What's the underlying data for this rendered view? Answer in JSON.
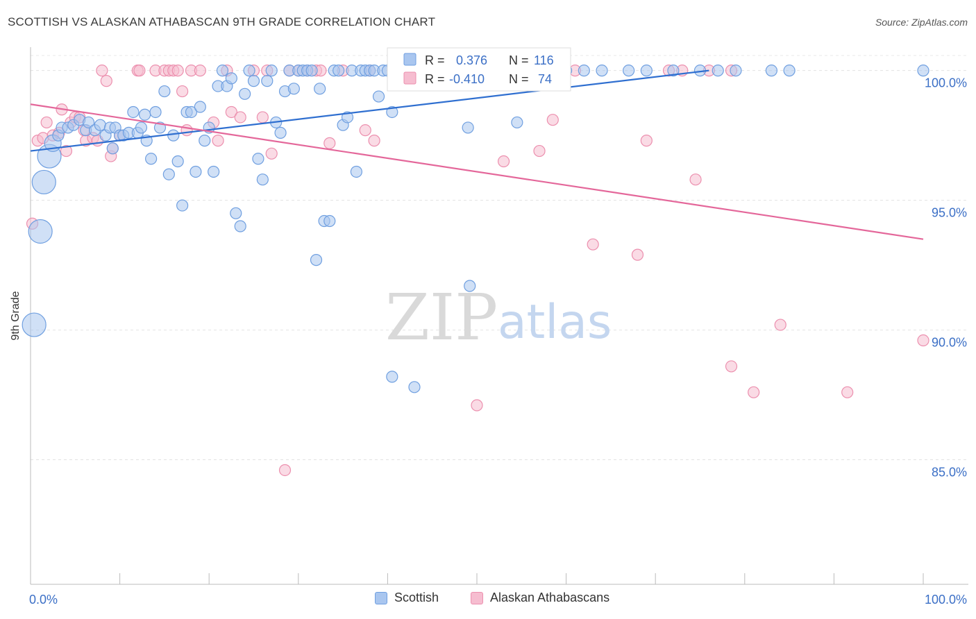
{
  "header": {
    "title": "SCOTTISH VS ALASKAN ATHABASCAN 9TH GRADE CORRELATION CHART",
    "source": "Source: ZipAtlas.com"
  },
  "watermark": {
    "zip": "ZIP",
    "atlas": "atlas"
  },
  "colors": {
    "blue_fill": "#a9c6ef",
    "blue_stroke": "#6f9fe0",
    "blue_line": "#2f6fd0",
    "pink_fill": "#f6bdd0",
    "pink_stroke": "#ec8fae",
    "pink_line": "#e4679a",
    "axis_label_blue": "#3b6fc6"
  },
  "legend_box": {
    "rows": [
      {
        "r_label": "R =",
        "r_value": "0.376",
        "n_label": "N =",
        "n_value": "116"
      },
      {
        "r_label": "R =",
        "r_value": "-0.410",
        "n_label": "N =",
        "n_value": "74"
      }
    ]
  },
  "bottom_legend": {
    "items": [
      "Scottish",
      "Alaskan Athabascans"
    ]
  },
  "chart_data": {
    "type": "scatter",
    "title": "SCOTTISH VS ALASKAN ATHABASCAN 9TH GRADE CORRELATION CHART",
    "ylabel": "9th Grade",
    "xlabel": "",
    "x_ticks": [
      "0.0%",
      "100.0%"
    ],
    "y_ticks": [
      "100.0%",
      "95.0%",
      "90.0%",
      "85.0%"
    ],
    "xlim": [
      0,
      100
    ],
    "ylim": [
      80.2,
      100.9
    ],
    "grid": "horizontal dashed",
    "legend_placement": "top-center",
    "series": [
      {
        "name": "Scottish",
        "R": 0.376,
        "N": 116,
        "trend": {
          "x": [
            0,
            76
          ],
          "y": [
            96.9,
            100.0
          ]
        },
        "points": [
          {
            "x": 0.4,
            "y": 90.2,
            "s": 3
          },
          {
            "x": 1.1,
            "y": 93.8,
            "s": 3
          },
          {
            "x": 1.5,
            "y": 95.7,
            "s": 3
          },
          {
            "x": 2.1,
            "y": 96.7,
            "s": 3
          },
          {
            "x": 2.5,
            "y": 97.2,
            "s": 2
          },
          {
            "x": 3.1,
            "y": 97.5,
            "s": 1
          },
          {
            "x": 3.5,
            "y": 97.8,
            "s": 1
          },
          {
            "x": 4.2,
            "y": 97.8,
            "s": 1
          },
          {
            "x": 4.8,
            "y": 97.9,
            "s": 1
          },
          {
            "x": 5.5,
            "y": 98.1,
            "s": 1
          },
          {
            "x": 6.2,
            "y": 97.7,
            "s": 1
          },
          {
            "x": 6.5,
            "y": 98.0,
            "s": 1
          },
          {
            "x": 7.2,
            "y": 97.7,
            "s": 1
          },
          {
            "x": 7.8,
            "y": 97.9,
            "s": 1
          },
          {
            "x": 8.4,
            "y": 97.5,
            "s": 1
          },
          {
            "x": 8.9,
            "y": 97.8,
            "s": 1
          },
          {
            "x": 9.2,
            "y": 97.0,
            "s": 1
          },
          {
            "x": 9.5,
            "y": 97.8,
            "s": 1
          },
          {
            "x": 10.0,
            "y": 97.5,
            "s": 1
          },
          {
            "x": 10.4,
            "y": 97.5,
            "s": 1
          },
          {
            "x": 11.0,
            "y": 97.6,
            "s": 1
          },
          {
            "x": 11.5,
            "y": 98.4,
            "s": 1
          },
          {
            "x": 12.0,
            "y": 97.6,
            "s": 1
          },
          {
            "x": 12.4,
            "y": 97.8,
            "s": 1
          },
          {
            "x": 12.8,
            "y": 98.3,
            "s": 1
          },
          {
            "x": 13.0,
            "y": 97.3,
            "s": 1
          },
          {
            "x": 13.5,
            "y": 96.6,
            "s": 1
          },
          {
            "x": 14.0,
            "y": 98.4,
            "s": 1
          },
          {
            "x": 14.5,
            "y": 97.8,
            "s": 1
          },
          {
            "x": 15.0,
            "y": 99.2,
            "s": 1
          },
          {
            "x": 15.5,
            "y": 96.0,
            "s": 1
          },
          {
            "x": 16.0,
            "y": 97.5,
            "s": 1
          },
          {
            "x": 16.5,
            "y": 96.5,
            "s": 1
          },
          {
            "x": 17.0,
            "y": 94.8,
            "s": 1
          },
          {
            "x": 17.5,
            "y": 98.4,
            "s": 1
          },
          {
            "x": 18.0,
            "y": 98.4,
            "s": 1
          },
          {
            "x": 18.5,
            "y": 96.1,
            "s": 1
          },
          {
            "x": 19.0,
            "y": 98.6,
            "s": 1
          },
          {
            "x": 19.5,
            "y": 97.3,
            "s": 1
          },
          {
            "x": 20.0,
            "y": 97.8,
            "s": 1
          },
          {
            "x": 20.5,
            "y": 96.1,
            "s": 1
          },
          {
            "x": 21.0,
            "y": 99.4,
            "s": 1
          },
          {
            "x": 21.5,
            "y": 100.0,
            "s": 1
          },
          {
            "x": 22.0,
            "y": 99.4,
            "s": 1
          },
          {
            "x": 22.5,
            "y": 99.7,
            "s": 1
          },
          {
            "x": 23.0,
            "y": 94.5,
            "s": 1
          },
          {
            "x": 23.5,
            "y": 94.0,
            "s": 1
          },
          {
            "x": 24.0,
            "y": 99.1,
            "s": 1
          },
          {
            "x": 24.5,
            "y": 100.0,
            "s": 1
          },
          {
            "x": 25.0,
            "y": 99.6,
            "s": 1
          },
          {
            "x": 25.5,
            "y": 96.6,
            "s": 1
          },
          {
            "x": 26.0,
            "y": 95.8,
            "s": 1
          },
          {
            "x": 26.5,
            "y": 99.6,
            "s": 1
          },
          {
            "x": 27.0,
            "y": 100.0,
            "s": 1
          },
          {
            "x": 27.5,
            "y": 98.0,
            "s": 1
          },
          {
            "x": 28.0,
            "y": 97.6,
            "s": 1
          },
          {
            "x": 28.5,
            "y": 99.2,
            "s": 1
          },
          {
            "x": 29.0,
            "y": 100.0,
            "s": 1
          },
          {
            "x": 29.5,
            "y": 99.3,
            "s": 1
          },
          {
            "x": 30.0,
            "y": 100.0,
            "s": 1
          },
          {
            "x": 30.5,
            "y": 100.0,
            "s": 1
          },
          {
            "x": 31.0,
            "y": 100.0,
            "s": 1
          },
          {
            "x": 31.5,
            "y": 100.0,
            "s": 1
          },
          {
            "x": 32.0,
            "y": 92.7,
            "s": 1
          },
          {
            "x": 32.4,
            "y": 99.3,
            "s": 1
          },
          {
            "x": 32.9,
            "y": 94.2,
            "s": 1
          },
          {
            "x": 33.5,
            "y": 94.2,
            "s": 1
          },
          {
            "x": 34.0,
            "y": 100.0,
            "s": 1
          },
          {
            "x": 34.5,
            "y": 100.0,
            "s": 1
          },
          {
            "x": 35.0,
            "y": 97.9,
            "s": 1
          },
          {
            "x": 35.5,
            "y": 98.2,
            "s": 1
          },
          {
            "x": 36.0,
            "y": 100.0,
            "s": 1
          },
          {
            "x": 36.5,
            "y": 96.1,
            "s": 1
          },
          {
            "x": 37.0,
            "y": 100.0,
            "s": 1
          },
          {
            "x": 37.5,
            "y": 100.0,
            "s": 1
          },
          {
            "x": 38.0,
            "y": 100.0,
            "s": 1
          },
          {
            "x": 38.5,
            "y": 100.0,
            "s": 1
          },
          {
            "x": 39.0,
            "y": 99.0,
            "s": 1
          },
          {
            "x": 39.5,
            "y": 100.0,
            "s": 1
          },
          {
            "x": 40.0,
            "y": 100.0,
            "s": 1
          },
          {
            "x": 40.5,
            "y": 88.2,
            "s": 1
          },
          {
            "x": 40.5,
            "y": 98.4,
            "s": 1
          },
          {
            "x": 42.0,
            "y": 100.0,
            "s": 1
          },
          {
            "x": 43.0,
            "y": 87.8,
            "s": 1
          },
          {
            "x": 44.0,
            "y": 100.0,
            "s": 1
          },
          {
            "x": 46.0,
            "y": 100.0,
            "s": 1
          },
          {
            "x": 48.0,
            "y": 100.0,
            "s": 1
          },
          {
            "x": 49.0,
            "y": 97.8,
            "s": 1
          },
          {
            "x": 49.2,
            "y": 91.7,
            "s": 1
          },
          {
            "x": 50.0,
            "y": 100.0,
            "s": 1
          },
          {
            "x": 54.0,
            "y": 100.0,
            "s": 1
          },
          {
            "x": 54.5,
            "y": 98.0,
            "s": 1
          },
          {
            "x": 58.0,
            "y": 100.0,
            "s": 1
          },
          {
            "x": 60.0,
            "y": 100.0,
            "s": 1
          },
          {
            "x": 62.0,
            "y": 100.0,
            "s": 1
          },
          {
            "x": 64.0,
            "y": 100.0,
            "s": 1
          },
          {
            "x": 67.0,
            "y": 100.0,
            "s": 1
          },
          {
            "x": 69.0,
            "y": 100.0,
            "s": 1
          },
          {
            "x": 72.0,
            "y": 100.0,
            "s": 1
          },
          {
            "x": 75.0,
            "y": 100.0,
            "s": 1
          },
          {
            "x": 77.0,
            "y": 100.0,
            "s": 1
          },
          {
            "x": 79.0,
            "y": 100.0,
            "s": 1
          },
          {
            "x": 83.0,
            "y": 100.0,
            "s": 1
          },
          {
            "x": 85.0,
            "y": 100.0,
            "s": 1
          },
          {
            "x": 100.0,
            "y": 100.0,
            "s": 1
          }
        ]
      },
      {
        "name": "Alaskan Athabascans",
        "R": -0.41,
        "N": 74,
        "trend": {
          "x": [
            0,
            100
          ],
          "y": [
            98.7,
            93.5
          ]
        },
        "points": [
          {
            "x": 0.2,
            "y": 94.1,
            "s": 1
          },
          {
            "x": 0.8,
            "y": 97.3,
            "s": 1
          },
          {
            "x": 1.4,
            "y": 97.4,
            "s": 1
          },
          {
            "x": 1.8,
            "y": 98.0,
            "s": 1
          },
          {
            "x": 2.5,
            "y": 97.5,
            "s": 1
          },
          {
            "x": 3.2,
            "y": 97.6,
            "s": 1
          },
          {
            "x": 3.5,
            "y": 98.5,
            "s": 1
          },
          {
            "x": 4.0,
            "y": 96.9,
            "s": 1
          },
          {
            "x": 4.5,
            "y": 98.0,
            "s": 1
          },
          {
            "x": 5.0,
            "y": 98.2,
            "s": 1
          },
          {
            "x": 5.5,
            "y": 98.2,
            "s": 1
          },
          {
            "x": 6.0,
            "y": 97.7,
            "s": 1
          },
          {
            "x": 6.2,
            "y": 97.3,
            "s": 1
          },
          {
            "x": 7.0,
            "y": 97.4,
            "s": 1
          },
          {
            "x": 7.5,
            "y": 97.3,
            "s": 1
          },
          {
            "x": 8.0,
            "y": 100.0,
            "s": 1
          },
          {
            "x": 8.5,
            "y": 99.6,
            "s": 1
          },
          {
            "x": 9.0,
            "y": 96.7,
            "s": 1
          },
          {
            "x": 9.2,
            "y": 97.0,
            "s": 1
          },
          {
            "x": 10.0,
            "y": 97.5,
            "s": 1
          },
          {
            "x": 12.0,
            "y": 100.0,
            "s": 1
          },
          {
            "x": 12.2,
            "y": 100.0,
            "s": 1
          },
          {
            "x": 14.0,
            "y": 100.0,
            "s": 1
          },
          {
            "x": 15.0,
            "y": 100.0,
            "s": 1
          },
          {
            "x": 15.5,
            "y": 100.0,
            "s": 1
          },
          {
            "x": 16.0,
            "y": 100.0,
            "s": 1
          },
          {
            "x": 16.5,
            "y": 100.0,
            "s": 1
          },
          {
            "x": 17.0,
            "y": 99.2,
            "s": 1
          },
          {
            "x": 17.5,
            "y": 97.7,
            "s": 1
          },
          {
            "x": 18.0,
            "y": 100.0,
            "s": 1
          },
          {
            "x": 19.0,
            "y": 100.0,
            "s": 1
          },
          {
            "x": 20.5,
            "y": 98.0,
            "s": 1
          },
          {
            "x": 21.0,
            "y": 97.3,
            "s": 1
          },
          {
            "x": 22.0,
            "y": 100.0,
            "s": 1
          },
          {
            "x": 22.5,
            "y": 98.4,
            "s": 1
          },
          {
            "x": 23.5,
            "y": 98.2,
            "s": 1
          },
          {
            "x": 25.0,
            "y": 100.0,
            "s": 1
          },
          {
            "x": 26.0,
            "y": 98.2,
            "s": 1
          },
          {
            "x": 26.5,
            "y": 100.0,
            "s": 1
          },
          {
            "x": 27.0,
            "y": 96.8,
            "s": 1
          },
          {
            "x": 28.5,
            "y": 84.6,
            "s": 1
          },
          {
            "x": 29.0,
            "y": 100.0,
            "s": 1
          },
          {
            "x": 30.0,
            "y": 100.0,
            "s": 1
          },
          {
            "x": 31.0,
            "y": 100.0,
            "s": 1
          },
          {
            "x": 32.0,
            "y": 100.0,
            "s": 1
          },
          {
            "x": 32.5,
            "y": 100.0,
            "s": 1
          },
          {
            "x": 33.5,
            "y": 97.2,
            "s": 1
          },
          {
            "x": 35.0,
            "y": 100.0,
            "s": 1
          },
          {
            "x": 37.5,
            "y": 97.7,
            "s": 1
          },
          {
            "x": 38.0,
            "y": 100.0,
            "s": 1
          },
          {
            "x": 38.5,
            "y": 97.3,
            "s": 1
          },
          {
            "x": 41.0,
            "y": 100.0,
            "s": 1
          },
          {
            "x": 45.0,
            "y": 100.0,
            "s": 1
          },
          {
            "x": 50.0,
            "y": 100.0,
            "s": 1
          },
          {
            "x": 50.0,
            "y": 87.1,
            "s": 1
          },
          {
            "x": 53.0,
            "y": 96.5,
            "s": 1
          },
          {
            "x": 55.0,
            "y": 100.0,
            "s": 1
          },
          {
            "x": 57.0,
            "y": 96.9,
            "s": 1
          },
          {
            "x": 58.5,
            "y": 98.1,
            "s": 1
          },
          {
            "x": 61.0,
            "y": 100.0,
            "s": 1
          },
          {
            "x": 63.0,
            "y": 93.3,
            "s": 1
          },
          {
            "x": 68.0,
            "y": 92.9,
            "s": 1
          },
          {
            "x": 69.0,
            "y": 97.3,
            "s": 1
          },
          {
            "x": 71.5,
            "y": 100.0,
            "s": 1
          },
          {
            "x": 73.0,
            "y": 100.0,
            "s": 1
          },
          {
            "x": 74.5,
            "y": 95.8,
            "s": 1
          },
          {
            "x": 76.0,
            "y": 100.0,
            "s": 1
          },
          {
            "x": 78.5,
            "y": 88.6,
            "s": 1
          },
          {
            "x": 78.5,
            "y": 100.0,
            "s": 1
          },
          {
            "x": 81.0,
            "y": 87.6,
            "s": 1
          },
          {
            "x": 84.0,
            "y": 90.2,
            "s": 1
          },
          {
            "x": 91.5,
            "y": 87.6,
            "s": 1
          },
          {
            "x": 100.0,
            "y": 89.6,
            "s": 1
          }
        ]
      }
    ]
  }
}
